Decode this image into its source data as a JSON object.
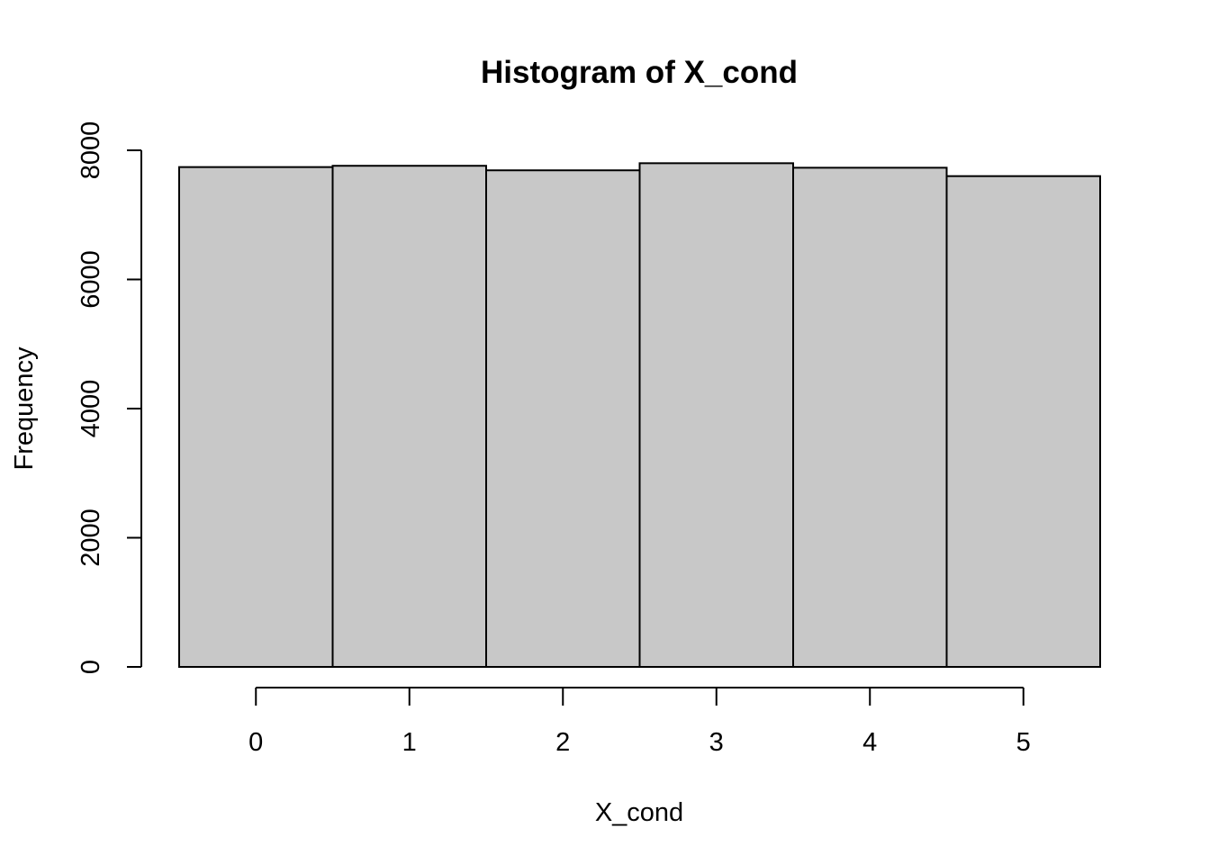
{
  "chart_data": {
    "type": "bar",
    "title": "Histogram of X_cond",
    "xlabel": "X_cond",
    "ylabel": "Frequency",
    "categories": [
      "0",
      "1",
      "2",
      "3",
      "4",
      "5"
    ],
    "x_ticks": [
      0,
      1,
      2,
      3,
      4,
      5
    ],
    "bin_edges": [
      -0.5,
      0.5,
      1.5,
      2.5,
      3.5,
      4.5,
      5.5
    ],
    "values": [
      7740,
      7760,
      7690,
      7800,
      7730,
      7600
    ],
    "y_ticks": [
      0,
      2000,
      4000,
      6000,
      8000
    ],
    "ylim": [
      0,
      8000
    ],
    "xlim": [
      -0.5,
      5.5
    ],
    "bar_color": "#c8c8c8",
    "border_color": "#000000",
    "grid": false
  }
}
